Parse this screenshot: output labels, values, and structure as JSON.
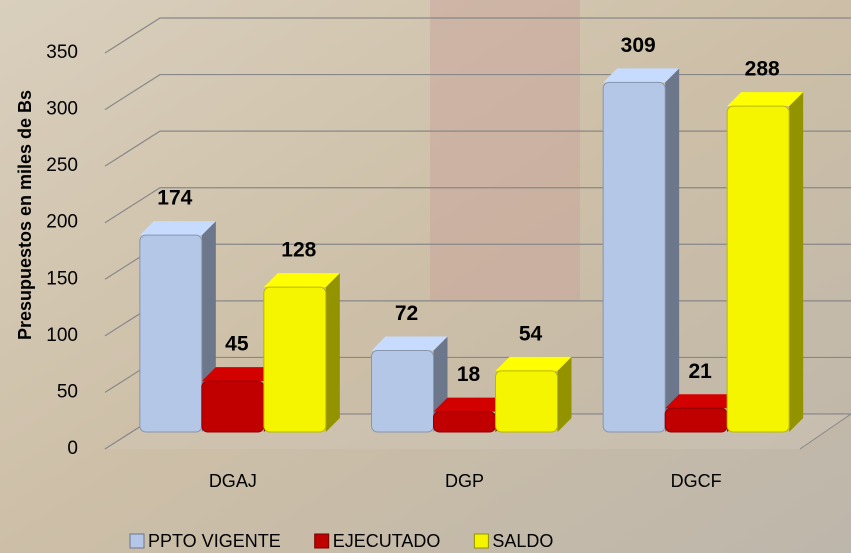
{
  "chart_data": {
    "type": "bar3d",
    "y_label": "Presupuestos en miles de Bs",
    "categories": [
      "DGAJ",
      "DGP",
      "DGCF"
    ],
    "series": [
      {
        "name": "PPTO VIGENTE",
        "color": "#b4c7e7",
        "values": [
          174,
          72,
          309
        ]
      },
      {
        "name": "EJECUTADO",
        "color": "#c00000",
        "values": [
          45,
          18,
          21
        ]
      },
      {
        "name": "SALDO",
        "color": "#f5f500",
        "values": [
          128,
          54,
          288
        ]
      }
    ],
    "ylim": [
      0,
      350
    ],
    "yticks": [
      0,
      50,
      100,
      150,
      200,
      250,
      300,
      350
    ],
    "grid": true
  }
}
